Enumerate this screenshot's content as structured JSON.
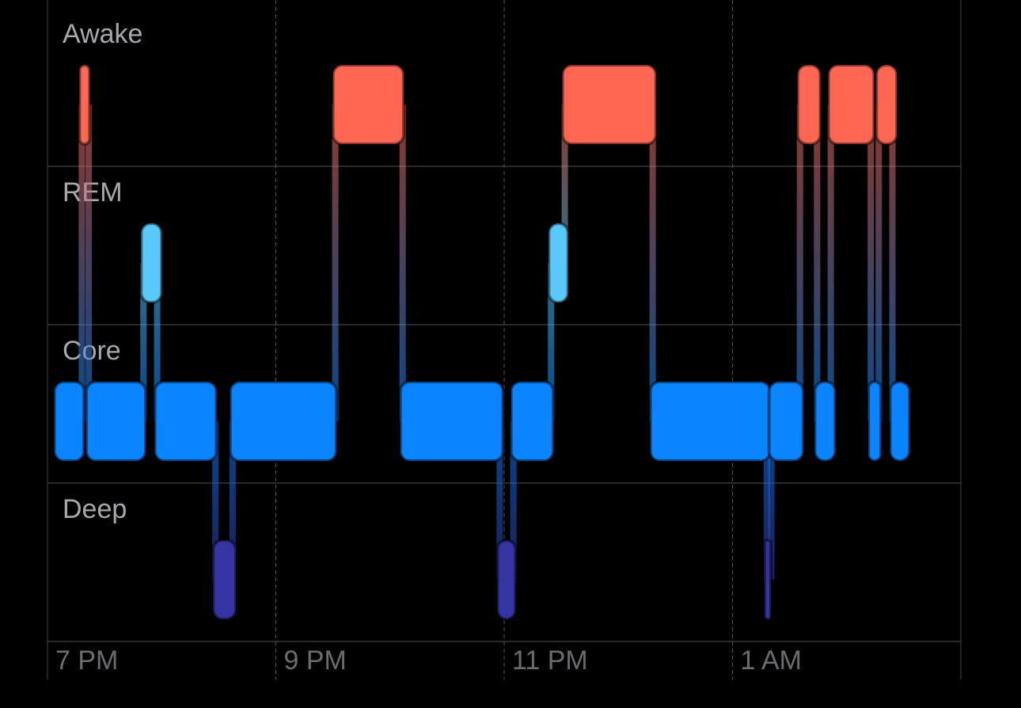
{
  "chart_data": {
    "type": "timeline",
    "xlim": [
      19,
      27
    ],
    "xticks": [
      {
        "value": 19,
        "label": "7 PM"
      },
      {
        "value": 21,
        "label": "9 PM"
      },
      {
        "value": 23,
        "label": "11 PM"
      },
      {
        "value": 25,
        "label": "1 AM"
      }
    ],
    "grid": true,
    "series": [
      {
        "name": "Awake",
        "color": "#ff6752",
        "intervals": [
          [
            19.28,
            19.37
          ],
          [
            21.5,
            22.12
          ],
          [
            23.51,
            24.33
          ],
          [
            25.57,
            25.77
          ],
          [
            25.84,
            26.24
          ],
          [
            26.26,
            26.44
          ]
        ]
      },
      {
        "name": "REM",
        "color": "#5ac8fa",
        "intervals": [
          [
            19.82,
            20.0
          ],
          [
            23.39,
            23.56
          ]
        ]
      },
      {
        "name": "Core",
        "color": "#0a84ff",
        "intervals": [
          [
            19.06,
            19.32
          ],
          [
            19.34,
            19.86
          ],
          [
            19.94,
            20.48
          ],
          [
            20.6,
            21.53
          ],
          [
            22.09,
            22.99
          ],
          [
            23.06,
            23.43
          ],
          [
            24.28,
            25.33
          ],
          [
            25.32,
            25.62
          ],
          [
            25.72,
            25.9
          ],
          [
            26.19,
            26.3
          ],
          [
            26.38,
            26.55
          ]
        ]
      },
      {
        "name": "Deep",
        "color": "#3634a3",
        "intervals": [
          [
            20.45,
            20.65
          ],
          [
            22.94,
            23.1
          ],
          [
            25.28,
            25.33
          ]
        ]
      }
    ]
  }
}
